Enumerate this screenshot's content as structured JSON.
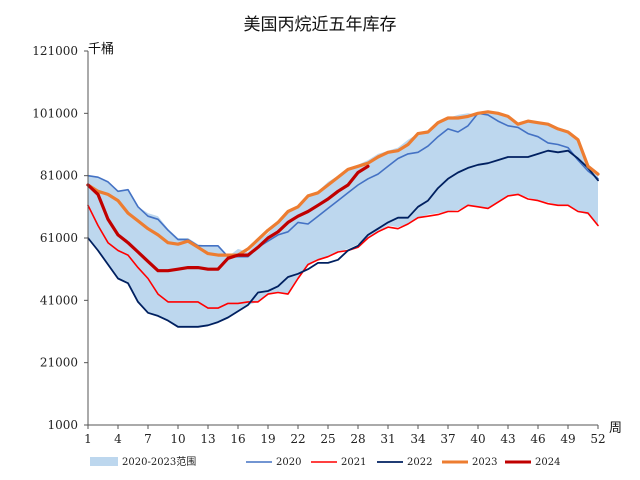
{
  "chart_data": {
    "type": "line",
    "title": "美国丙烷近五年库存",
    "y_unit_label": "千桶",
    "x_unit_label": "周",
    "ylim": [
      1000,
      121000
    ],
    "yticks": [
      1000,
      21000,
      41000,
      61000,
      81000,
      101000,
      121000
    ],
    "ytick_labels": [
      "1000",
      "21000",
      "41000",
      "61000",
      "81000",
      "101000",
      "121000"
    ],
    "xlim": [
      1,
      52
    ],
    "xticks": [
      1,
      4,
      7,
      10,
      13,
      16,
      19,
      22,
      25,
      28,
      31,
      34,
      37,
      40,
      43,
      46,
      49,
      52
    ],
    "xtick_labels": [
      "1",
      "4",
      "7",
      "10",
      "13",
      "16",
      "19",
      "22",
      "25",
      "28",
      "31",
      "34",
      "37",
      "40",
      "43",
      "46",
      "49",
      "52"
    ],
    "grid": false,
    "legend_position": "bottom",
    "band": {
      "name": "2020-2023范围",
      "color": "#bdd7ee",
      "upper": [
        81000,
        80500,
        79000,
        76000,
        76500,
        71000,
        69000,
        68000,
        64000,
        61000,
        61000,
        59000,
        58500,
        58500,
        55000,
        57500,
        56500,
        60000,
        62500,
        66000,
        69000,
        71000,
        74000,
        76000,
        79000,
        81000,
        83000,
        84500,
        86000,
        88000,
        89000,
        90000,
        92500,
        94500,
        95500,
        98000,
        99500,
        100500,
        101000,
        100500,
        101000,
        101500,
        100000,
        97500,
        98500,
        98000,
        97500,
        96000,
        95000,
        92500,
        84000,
        81500
      ],
      "lower": [
        61000,
        57000,
        52500,
        48000,
        46500,
        40500,
        37000,
        36000,
        34500,
        32500,
        32500,
        32500,
        33000,
        34000,
        35500,
        37500,
        39500,
        40500,
        43000,
        43500,
        43000,
        48000,
        52000,
        54000,
        55000,
        56500,
        57500,
        59000,
        61000,
        63000,
        65000,
        64500,
        65500,
        67500,
        68500,
        69000,
        69500,
        70000,
        71500,
        71000,
        70500,
        72500,
        74500,
        75000,
        74000,
        73000,
        72500,
        71500,
        71500,
        69500,
        68500,
        65000
      ]
    },
    "series": [
      {
        "name": "2020",
        "color": "#4472c4",
        "width": 1.6,
        "values": [
          81000,
          80500,
          79000,
          76000,
          76500,
          71000,
          68000,
          67000,
          63500,
          60500,
          60500,
          58500,
          58500,
          58500,
          55000,
          55000,
          55000,
          58000,
          60000,
          62000,
          63000,
          66000,
          65500,
          68000,
          70500,
          73000,
          75500,
          78000,
          80000,
          81500,
          84000,
          86500,
          88000,
          88500,
          90500,
          93500,
          96000,
          95000,
          97000,
          101000,
          100500,
          98500,
          97000,
          96500,
          94500,
          93500,
          91500,
          91000,
          90000,
          86000,
          82500,
          80000
        ]
      },
      {
        "name": "2021",
        "color": "#ff0000",
        "width": 1.6,
        "values": [
          71500,
          65000,
          59500,
          57000,
          55500,
          51500,
          48000,
          43000,
          40500,
          40500,
          40500,
          40500,
          38500,
          38500,
          40000,
          40000,
          40500,
          40500,
          43000,
          43500,
          43000,
          48000,
          52500,
          54000,
          55000,
          56500,
          57000,
          58000,
          61000,
          63000,
          64500,
          64000,
          65500,
          67500,
          68000,
          68500,
          69500,
          69500,
          71500,
          71000,
          70500,
          72500,
          74500,
          75000,
          73500,
          73000,
          72000,
          71500,
          71500,
          69500,
          69000,
          65000
        ]
      },
      {
        "name": "2022",
        "color": "#002060",
        "width": 1.8,
        "values": [
          61000,
          57000,
          52500,
          48000,
          46500,
          40500,
          37000,
          36000,
          34500,
          32500,
          32500,
          32500,
          33000,
          34000,
          35500,
          37500,
          39500,
          43500,
          44000,
          45500,
          48500,
          49500,
          51000,
          53000,
          53000,
          54000,
          57000,
          58500,
          62000,
          64000,
          66000,
          67500,
          67500,
          71000,
          73000,
          77000,
          80000,
          82000,
          83500,
          84500,
          85000,
          86000,
          87000,
          87000,
          87000,
          88000,
          89000,
          88500,
          89000,
          86500,
          83500,
          79500
        ]
      },
      {
        "name": "2023",
        "color": "#ed7d31",
        "width": 3.2,
        "values": [
          78000,
          76000,
          75000,
          73000,
          69000,
          66500,
          64000,
          62000,
          59500,
          59000,
          60000,
          58000,
          56000,
          55500,
          55500,
          55500,
          57500,
          60500,
          63500,
          66000,
          69500,
          71000,
          74500,
          75500,
          78000,
          80500,
          83000,
          84000,
          85000,
          87000,
          88500,
          89000,
          91000,
          94500,
          95000,
          98000,
          99500,
          99500,
          100000,
          101000,
          101500,
          101000,
          100000,
          97500,
          98500,
          98000,
          97500,
          96000,
          95000,
          92500,
          84000,
          81500
        ]
      },
      {
        "name": "2024",
        "color": "#c00000",
        "width": 3.2,
        "values": [
          78000,
          75000,
          67000,
          62000,
          59500,
          56500,
          53500,
          50500,
          50500,
          51000,
          51500,
          51500,
          51000,
          51000,
          54500,
          55500,
          55500,
          58000,
          61000,
          63000,
          66000,
          68000,
          69500,
          71500,
          73500,
          76000,
          78000,
          82000,
          84000
        ]
      }
    ]
  }
}
